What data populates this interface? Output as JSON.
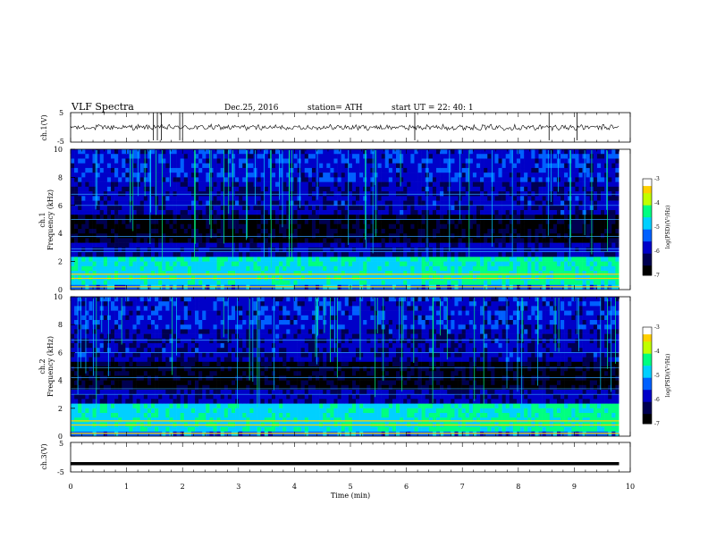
{
  "header": {
    "title": "VLF  Spectra",
    "date": "Dec.25, 2016",
    "station": "station= ATH",
    "start": "start  UT  =    22: 40: 1"
  },
  "chart_data": [
    {
      "type": "line",
      "panel": "ch1-waveform",
      "ylabel": "ch.1(V)",
      "ylim": [
        -5,
        5
      ],
      "yticks": [
        5,
        -5
      ],
      "xlim": [
        0,
        10
      ],
      "series": [
        {
          "values": [
            0,
            0.1,
            -0.4,
            0.4,
            -0.7,
            0.3,
            -0.3,
            0.5,
            -0.5,
            0.2,
            -0.2,
            0.6,
            -0.6,
            0.3,
            -0.1,
            0.4
          ]
        }
      ],
      "spikes_min": [
        1.48,
        1.55,
        1.62,
        1.95,
        2.0,
        6.15,
        8.55,
        9.05
      ]
    },
    {
      "type": "heatmap",
      "panel": "ch1-spectrogram",
      "ylabel": "ch.1\nFrequency  (kHz)",
      "xlim": [
        0,
        9.8
      ],
      "ylim": [
        0,
        10
      ],
      "yticks": [
        0,
        2,
        4,
        6,
        8,
        10
      ],
      "emission_band_khz": [
        0.5,
        2.4
      ],
      "horizontal_lines_khz": [
        0.2,
        0.8,
        1.1,
        2.7,
        2.9,
        3.8,
        5.0,
        6.0,
        6.8
      ],
      "colorbar": {
        "label": "log(PSD)(V²/Hz)",
        "range": [
          -7,
          -3
        ],
        "ticks": [
          -3,
          -4,
          -5,
          -6,
          -7
        ]
      }
    },
    {
      "type": "heatmap",
      "panel": "ch2-spectrogram",
      "ylabel": "ch.2\nFrequency  (kHz)",
      "xlim": [
        0,
        9.8
      ],
      "ylim": [
        0,
        10
      ],
      "yticks": [
        0,
        2,
        4,
        6,
        8,
        10
      ],
      "emission_band_khz": [
        0.5,
        2.4
      ],
      "horizontal_lines_khz": [
        0.2,
        0.8,
        1.1,
        3.0,
        3.4,
        4.2,
        4.9,
        6.0,
        6.9
      ],
      "colorbar": {
        "label": "log(PSD)(V²/Hz)",
        "range": [
          -7,
          -3
        ],
        "ticks": [
          -3,
          -4,
          -5,
          -6,
          -7
        ]
      }
    },
    {
      "type": "line",
      "panel": "ch3-waveform",
      "ylabel": "ch.3(V)",
      "ylim": [
        -5,
        5
      ],
      "yticks": [
        5,
        -5
      ],
      "xlim": [
        0,
        10
      ],
      "series": [
        {
          "values": [
            -2.2,
            -2.2,
            -2.2,
            -2.2
          ]
        }
      ]
    }
  ],
  "xaxis": {
    "label": "Time  (min)",
    "ticks": [
      "0",
      "1",
      "2",
      "3",
      "4",
      "5",
      "6",
      "7",
      "8",
      "9",
      "10"
    ],
    "range": [
      0,
      10
    ]
  },
  "colors": {
    "cmap": [
      "#000000",
      "#000050",
      "#0000c8",
      "#0060ff",
      "#00d0ff",
      "#00ff80",
      "#c0ff00",
      "#ffd000",
      "#ff3000",
      "#ffffff"
    ]
  }
}
